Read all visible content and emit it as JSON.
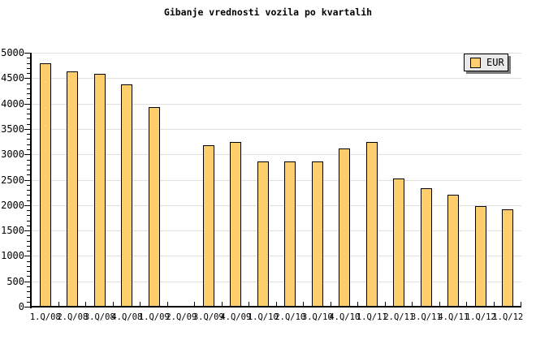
{
  "title": "Gibanje vrednosti vozila po kvartalih",
  "legend": {
    "label": "EUR",
    "swatch_color": "#FDCE6B",
    "box_color": "#E9E9E9"
  },
  "chart_data": {
    "type": "bar",
    "title": "Gibanje vrednosti vozila po kvartalih",
    "xlabel": "",
    "ylabel": "",
    "categories": [
      "1.Q/08",
      "2.Q/08",
      "3.Q/08",
      "4.Q/08",
      "1.Q/09",
      "2.Q/09",
      "3.Q/09",
      "4.Q/09",
      "1.Q/10",
      "2.Q/10",
      "3.Q/10",
      "4.Q/10",
      "1.Q/11",
      "2.Q/11",
      "3.Q/11",
      "4.Q/11",
      "1.Q/12",
      "1.Q/12"
    ],
    "series": [
      {
        "name": "EUR",
        "values": [
          4790,
          4640,
          4580,
          4370,
          3930,
          null,
          3180,
          3250,
          2860,
          2860,
          2860,
          3120,
          3250,
          2530,
          2330,
          2200,
          1980,
          1920
        ]
      }
    ],
    "ylim": [
      0,
      5000
    ],
    "y_major_step": 500,
    "y_minor_step": 100,
    "y_tick_labels": [
      "0",
      "500",
      "1000",
      "1500",
      "2000",
      "2500",
      "3000",
      "3500",
      "4000",
      "4500",
      "5000"
    ],
    "grid": true,
    "legend_position": "top-right",
    "bar_color": "#FDCE6B",
    "bar_border_color": "#000000",
    "grid_color": "#E0E0E0",
    "axis_color": "#000000",
    "background_color": "#FFFFFF"
  }
}
